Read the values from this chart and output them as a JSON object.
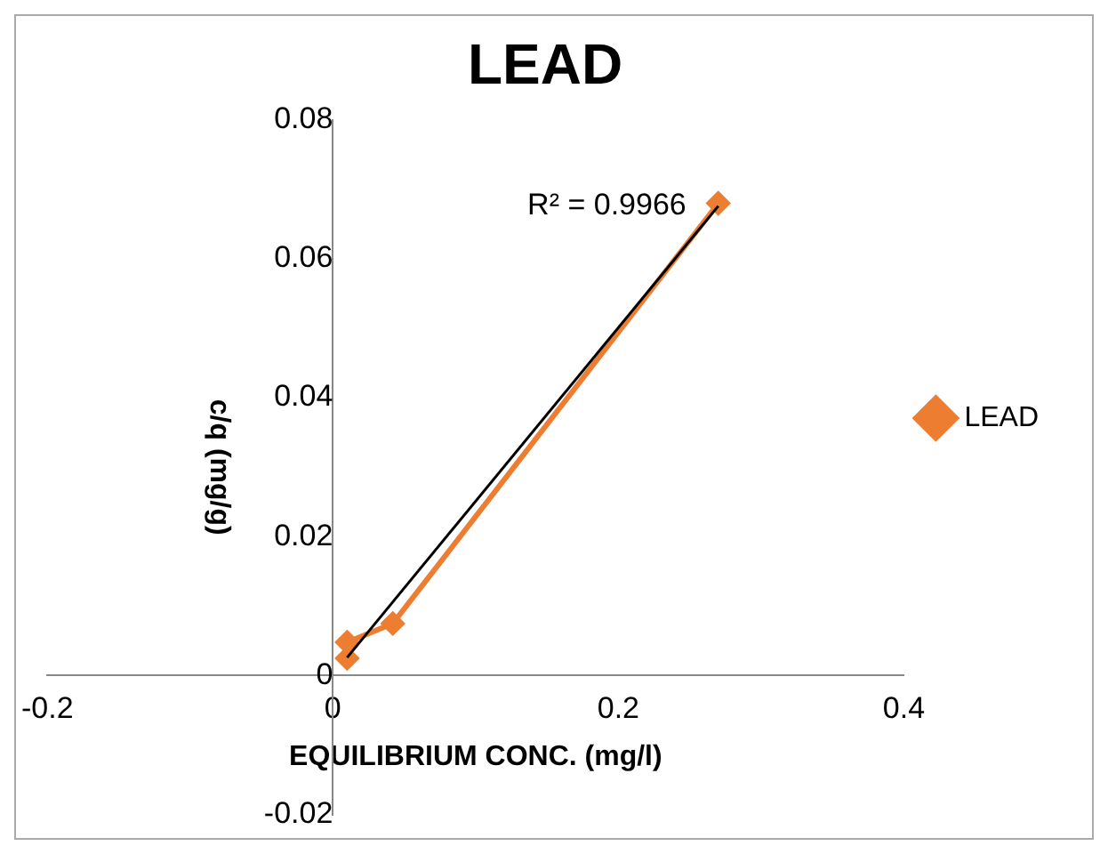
{
  "chart_data": {
    "type": "line",
    "title": "LEAD",
    "xlabel": "EQUILIBRIUM CONC. (mg/l)",
    "ylabel": "c/q (mg/g)",
    "series": [
      {
        "name": "LEAD",
        "color": "#ed7d31",
        "x": [
          0.01,
          0.01,
          0.042,
          0.27
        ],
        "values": [
          0.0025,
          0.0048,
          0.0075,
          0.068
        ],
        "marker": "diamond"
      },
      {
        "type": "line",
        "color": "#000000",
        "x": [
          0.01,
          0.27
        ],
        "values": [
          0.0026,
          0.0676
        ],
        "marker": "none"
      }
    ],
    "annotations": [
      "R² = 0.9966"
    ],
    "xlim": [
      -0.2,
      0.4
    ],
    "xticks": [
      -0.2,
      0,
      0.2,
      0.4
    ],
    "ylim": [
      -0.02,
      0.08
    ],
    "yticks": [
      -0.02,
      0,
      0.02,
      0.04,
      0.06,
      0.08
    ],
    "grid": false,
    "legend": "right"
  }
}
